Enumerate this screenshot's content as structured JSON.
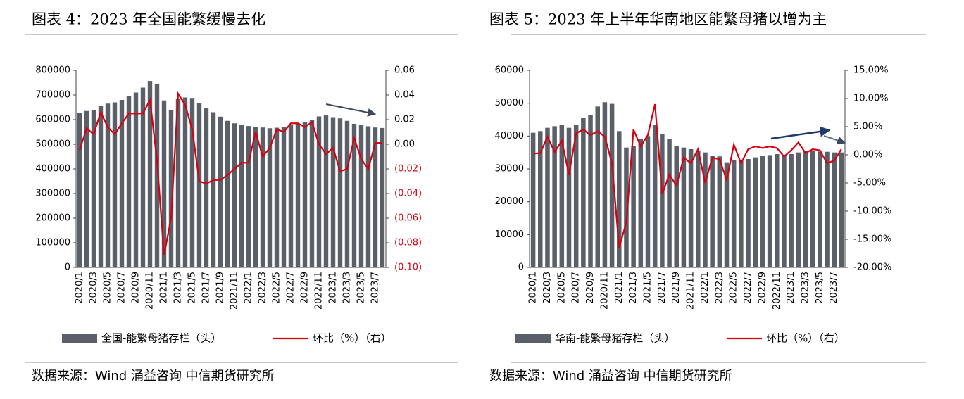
{
  "chart_data": [
    {
      "type": "bar",
      "title": "图表 4：2023 年全国能繁缓慢去化",
      "source": "数据来源：Wind 涌益咨询 中信期货研究所",
      "categories": [
        "2020/1",
        null,
        "2020/3",
        null,
        "2020/5",
        null,
        "2020/7",
        null,
        "2020/9",
        null,
        "2020/11",
        null,
        "2021/1",
        null,
        "2021/3",
        null,
        "2021/5",
        null,
        "2021/7",
        null,
        "2021/9",
        null,
        "2021/11",
        null,
        "2022/1",
        null,
        "2022/3",
        null,
        "2022/5",
        null,
        "2022/7",
        null,
        "2022/9",
        null,
        "2022/11",
        null,
        "2023/1",
        null,
        "2023/3",
        null,
        "2023/5",
        null,
        "2023/7",
        null
      ],
      "series": [
        {
          "name": "全国-能繁母猪存栏（头）",
          "color": "#5a5f69",
          "values": [
            628000,
            635000,
            640000,
            655000,
            665000,
            670000,
            680000,
            695000,
            710000,
            730000,
            757000,
            745000,
            678000,
            638000,
            683000,
            690000,
            688000,
            668000,
            648000,
            630000,
            612000,
            595000,
            585000,
            578000,
            574000,
            570000,
            568000,
            565000,
            567000,
            571000,
            578000,
            583000,
            590000,
            598000,
            613000,
            617000,
            610000,
            605000,
            595000,
            583000,
            578000,
            573000,
            568000,
            566000
          ]
        },
        {
          "name": "环比（%）（右）",
          "type": "line",
          "axis": "y2",
          "color": "#d7000f",
          "values": [
            -0.005,
            0.013,
            0.008,
            0.026,
            0.014,
            0.008,
            0.017,
            0.025,
            0.025,
            0.025,
            0.036,
            -0.013,
            -0.09,
            -0.06,
            0.041,
            0.032,
            0.012,
            -0.03,
            -0.032,
            -0.029,
            -0.029,
            -0.025,
            -0.02,
            -0.015,
            -0.015,
            0.01,
            -0.01,
            -0.003,
            0.012,
            0.01,
            0.017,
            0.017,
            0.014,
            0.018,
            0,
            -0.008,
            -0.003,
            -0.022,
            -0.02,
            0.005,
            -0.012,
            -0.02,
            0.001,
            0.001
          ]
        }
      ],
      "ylim": [
        0,
        800000
      ],
      "yticks": [
        0,
        100000,
        200000,
        300000,
        400000,
        500000,
        600000,
        700000,
        800000
      ],
      "y2lim": [
        -0.1,
        0.06
      ],
      "y2ticks": [
        {
          "value": -0.1,
          "label": "(0.10)"
        },
        {
          "value": -0.08,
          "label": "(0.08)"
        },
        {
          "value": -0.06,
          "label": "(0.06)"
        },
        {
          "value": -0.04,
          "label": "(0.04)"
        },
        {
          "value": -0.02,
          "label": "(0.02)"
        },
        {
          "value": 0,
          "label": "0.00"
        },
        0.02,
        0.04,
        0.06
      ]
    },
    {
      "type": "bar",
      "title": "图表 5：2023 年上半年华南地区能繁母猪以增为主",
      "source": "数据来源：Wind 涌益咨询 中信期货研究所",
      "categories": [
        "2020/1",
        null,
        "2020/3",
        null,
        "2020/5",
        null,
        "2020/7",
        null,
        "2020/9",
        null,
        "2020/11",
        null,
        "2021/1",
        null,
        "2021/3",
        null,
        "2021/5",
        null,
        "2021/7",
        null,
        "2021/9",
        null,
        "2021/11",
        null,
        "2022/1",
        null,
        "2022/3",
        null,
        "2022/5",
        null,
        "2022/7",
        null,
        "2022/9",
        null,
        "2022/11",
        null,
        "2023/1",
        null,
        "2023/3",
        null,
        "2023/5",
        null,
        "2023/7",
        null
      ],
      "series": [
        {
          "name": "华南-能繁母猪存栏（头）",
          "color": "#5a5f69",
          "values": [
            41000,
            41500,
            42500,
            43000,
            43500,
            42500,
            43500,
            45500,
            46500,
            49000,
            50300,
            49800,
            41500,
            36500,
            37000,
            39000,
            40000,
            43500,
            40500,
            39000,
            37000,
            36500,
            36000,
            35500,
            35000,
            34000,
            33800,
            32000,
            32800,
            32500,
            33000,
            33500,
            34000,
            34200,
            34500,
            34000,
            34500,
            35000,
            35500,
            35500,
            35300,
            35200,
            35000,
            35000
          ]
        },
        {
          "name": "环比（%）（右）",
          "type": "line",
          "axis": "y2",
          "color": "#d7000f",
          "values": [
            0.2,
            0.3,
            3.2,
            0.5,
            2.5,
            -3.5,
            3.8,
            4.5,
            3.5,
            4.2,
            3.2,
            -1.5,
            -16.5,
            -12,
            4.5,
            1.5,
            3.5,
            9,
            -7,
            -3.5,
            -5.5,
            -0.5,
            -1.5,
            1,
            -5,
            -0.5,
            -0.8,
            -4.5,
            1.8,
            -1.5,
            1,
            1.5,
            1.2,
            1.5,
            1.2,
            -0.3,
            0.8,
            2.2,
            0.3,
            1,
            0.8,
            -1.5,
            -1,
            1
          ]
        }
      ],
      "ylim": [
        0,
        60000
      ],
      "yticks": [
        0,
        10000,
        20000,
        30000,
        40000,
        50000,
        60000
      ],
      "y2lim": [
        -20,
        15
      ],
      "y2ticks": [
        {
          "value": -20,
          "label": "-20.00%"
        },
        {
          "value": -15,
          "label": "-15.00%"
        },
        {
          "value": -10,
          "label": "-10.00%"
        },
        {
          "value": -5,
          "label": "-5.00%"
        },
        {
          "value": 0,
          "label": "0.00%"
        },
        {
          "value": 5,
          "label": "5.00%"
        },
        {
          "value": 10,
          "label": "10.00%"
        },
        {
          "value": 15,
          "label": "15.00%"
        }
      ]
    }
  ]
}
